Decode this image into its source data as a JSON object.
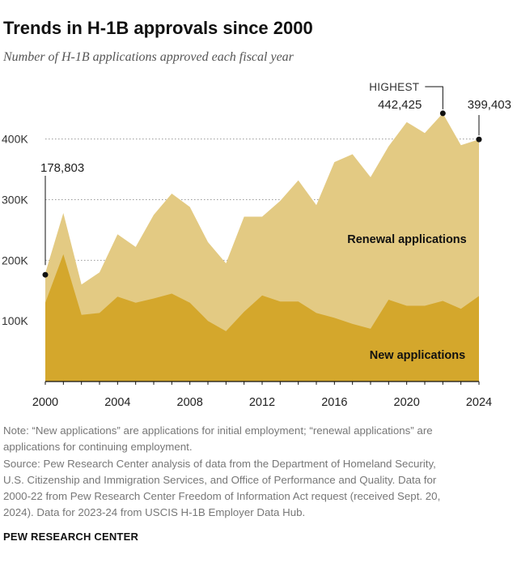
{
  "title": "Trends in H-1B approvals since 2000",
  "subtitle": "Number of H-1B applications approved each fiscal year",
  "note_lines": [
    "Note: “New applications” are applications for initial employment; “renewal applications” are",
    "applications for continuing employment.",
    "Source: Pew Research Center analysis of data from the Department of Homeland Security,",
    "U.S. Citizenship and Immigration Services, and Office of Performance and Quality. Data for",
    "2000-22 from Pew Research Center Freedom of Information Act request (received Sept. 20,",
    "2024). Data for 2023-24 from USCIS H-1B Employer Data Hub."
  ],
  "brand": "PEW RESEARCH CENTER",
  "colors": {
    "new": "#d4a72c",
    "renewal": "#e3ca83",
    "axis": "#111111",
    "grid": "#999999"
  },
  "chart_data": {
    "type": "area",
    "stacked": true,
    "x": [
      2000,
      2001,
      2002,
      2003,
      2004,
      2005,
      2006,
      2007,
      2008,
      2009,
      2010,
      2011,
      2012,
      2013,
      2014,
      2015,
      2016,
      2017,
      2018,
      2019,
      2020,
      2021,
      2022,
      2023,
      2024
    ],
    "series": [
      {
        "name": "New applications",
        "values": [
          130000,
          210000,
          110000,
          113000,
          140000,
          130000,
          137000,
          145000,
          130000,
          100000,
          83000,
          115000,
          142000,
          132000,
          132000,
          113000,
          105000,
          95000,
          87000,
          135000,
          125000,
          125000,
          133000,
          120000,
          141000
        ]
      },
      {
        "name": "Renewal applications",
        "values": [
          48803,
          68000,
          50000,
          67000,
          103000,
          92000,
          138000,
          165000,
          158000,
          130000,
          112000,
          157000,
          130000,
          166000,
          200000,
          178000,
          257000,
          280000,
          250000,
          253000,
          303000,
          285000,
          309425,
          270000,
          258403
        ]
      }
    ],
    "totals_labeled": {
      "2000": "178,803",
      "2022": "442,425",
      "2024": "399,403"
    },
    "highest_label": "HIGHEST",
    "y_ticks": [
      "100K",
      "200K",
      "300K",
      "400K"
    ],
    "y_tick_values": [
      100000,
      200000,
      300000,
      400000
    ],
    "x_ticks": [
      "2000",
      "2004",
      "2008",
      "2012",
      "2016",
      "2020",
      "2024"
    ],
    "x_tick_values": [
      2000,
      2004,
      2008,
      2012,
      2016,
      2020,
      2024
    ],
    "xlim": [
      2000,
      2024
    ],
    "ylim": [
      0,
      460000
    ],
    "grid": true,
    "legend_placement": "inline-labels"
  }
}
